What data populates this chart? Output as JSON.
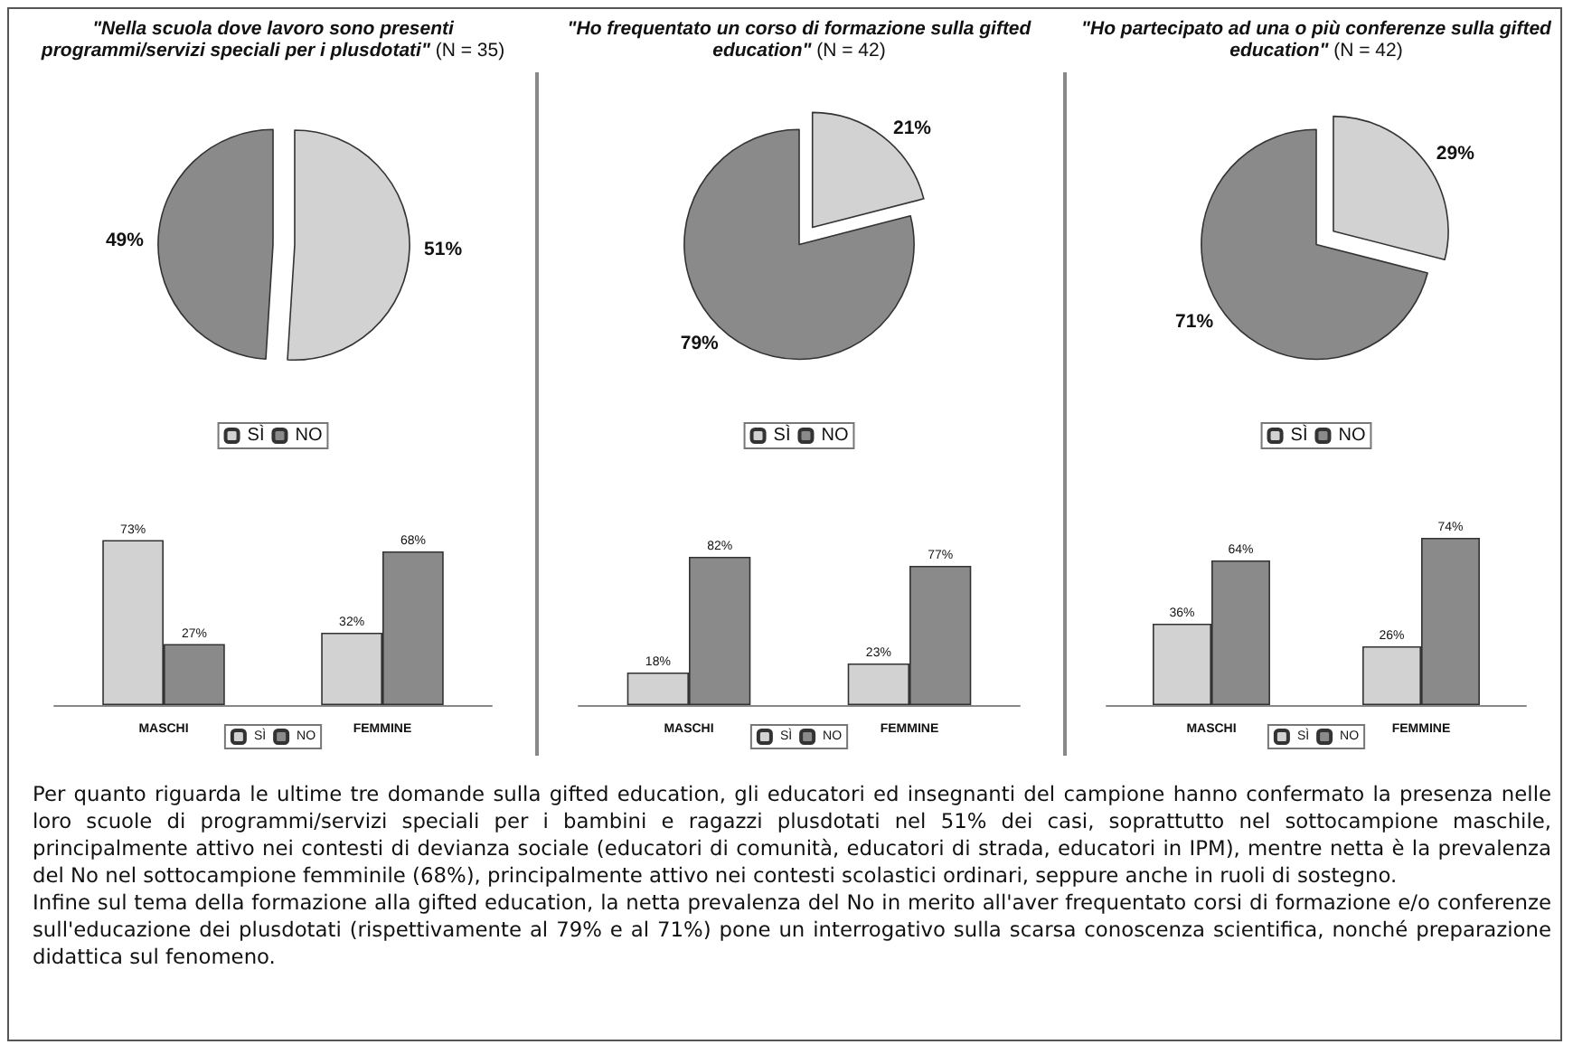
{
  "chart_data": [
    {
      "type": "pie",
      "title": "\"Nella scuola dove lavoro sono presenti programmi/servizi speciali per i plusdotati\" (N = 35)",
      "categories": [
        "SÌ",
        "NO"
      ],
      "values": [
        51,
        49
      ],
      "value_labels": [
        "51%",
        "49%"
      ],
      "colors": [
        "#d2d2d2",
        "#8a8a8a"
      ],
      "legend": "bottom"
    },
    {
      "type": "pie",
      "title": "\"Ho frequentato un corso di formazione sulla gifted education\" (N = 42)",
      "categories": [
        "SÌ",
        "NO"
      ],
      "values": [
        21,
        79
      ],
      "value_labels": [
        "21%",
        "79%"
      ],
      "colors": [
        "#d2d2d2",
        "#8a8a8a"
      ],
      "legend": "bottom"
    },
    {
      "type": "pie",
      "title": "\"Ho partecipato ad una o più conferenze sulla gifted education\" (N = 42)",
      "categories": [
        "SÌ",
        "NO"
      ],
      "values": [
        29,
        71
      ],
      "value_labels": [
        "29%",
        "71%"
      ],
      "colors": [
        "#d2d2d2",
        "#8a8a8a"
      ],
      "legend": "bottom"
    },
    {
      "type": "bar",
      "categories": [
        "MASCHI",
        "FEMMINE"
      ],
      "legend": "bottom",
      "series": [
        {
          "name": "SÌ",
          "color": "#d2d2d2",
          "values": [
            73,
            32
          ],
          "value_labels": [
            "73%",
            "32%"
          ]
        },
        {
          "name": "NO",
          "color": "#8a8a8a",
          "values": [
            27,
            68
          ],
          "value_labels": [
            "27%",
            "68%"
          ]
        }
      ]
    },
    {
      "type": "bar",
      "categories": [
        "MASCHI",
        "FEMMINE"
      ],
      "legend": "bottom",
      "series": [
        {
          "name": "SÌ",
          "color": "#d2d2d2",
          "values": [
            18,
            23
          ],
          "value_labels": [
            "18%",
            "23%"
          ]
        },
        {
          "name": "NO",
          "color": "#8a8a8a",
          "values": [
            82,
            77
          ],
          "value_labels": [
            "82%",
            "77%"
          ]
        }
      ]
    },
    {
      "type": "bar",
      "categories": [
        "MASCHI",
        "FEMMINE"
      ],
      "legend": "bottom",
      "series": [
        {
          "name": "SÌ",
          "color": "#d2d2d2",
          "values": [
            36,
            26
          ],
          "value_labels": [
            "36%",
            "26%"
          ]
        },
        {
          "name": "NO",
          "color": "#8a8a8a",
          "values": [
            64,
            74
          ],
          "value_labels": [
            "64%",
            "74%"
          ]
        }
      ]
    },
    {
      "type": "other",
      "annotations": [
        "Per quanto riguarda le ultime tre domande sulla gifted education, gli educatori ed insegnanti del campione hanno confermato la presenza nelle loro scuole di programmi/servizi speciali per i bambini e ragazzi plusdotati nel 51% dei casi, soprattutto nel sottocampione maschile, principalmente attivo nei contesti di devianza sociale (educatori di comunità, educatori di strada, educatori in IPM), mentre netta è la prevalenza del No nel sottocampione femminile (68%), principalmente attivo nei contesti scolastici ordinari, seppure anche in ruoli di sostegno.",
        "Infine sul tema della formazione alla gifted education, la netta prevalenza del No in merito all'aver frequentato corsi di formazione e/o conferenze sull'educazione dei plusdotati (rispettivamente al 79% e al 71%) pone un interrogativo sulla scarsa conoscenza scientifica, nonché preparazione didattica sul fenomeno."
      ]
    }
  ]
}
